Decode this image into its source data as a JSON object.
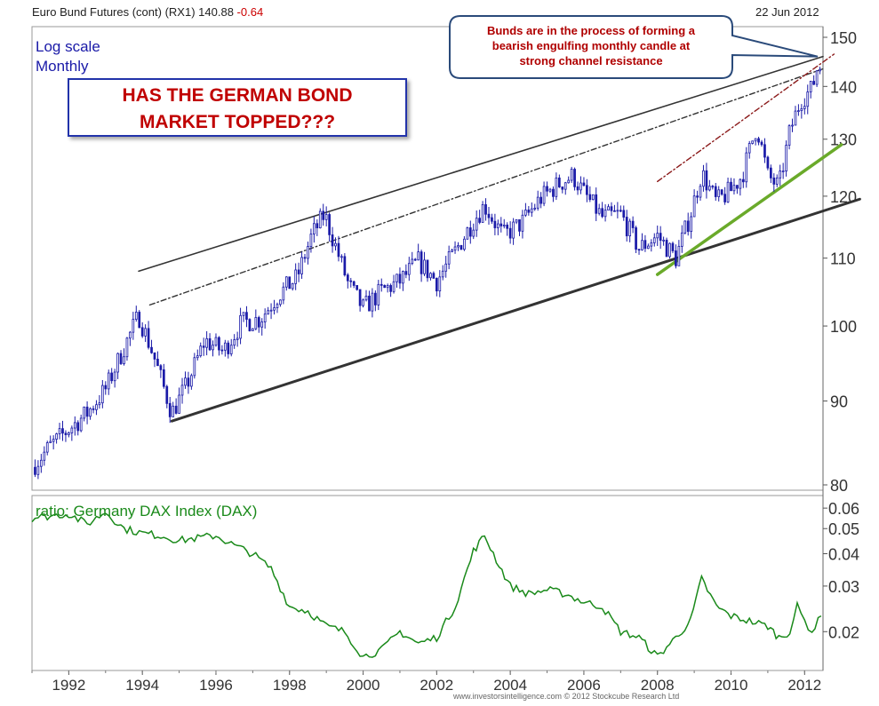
{
  "header": {
    "instrument": "Euro Bund Futures (cont) (RX1)",
    "price": "140.88",
    "change": "-0.64",
    "date": "22 Jun 2012"
  },
  "labels": {
    "scale": "Log scale",
    "period": "Monthly"
  },
  "headline": {
    "line1": "HAS THE GERMAN BOND",
    "line2": "MARKET TOPPED???"
  },
  "callout": {
    "line1": "Bunds are in the process of forming a",
    "line2": "bearish engulfing monthly candle at",
    "line3": "strong channel resistance"
  },
  "footer": "www.investorsintelligence.com  © 2012 Stockcube Research Ltd",
  "colors": {
    "candle": "#1a1aa8",
    "ratio": "#1a8a1a",
    "channel": "#333333",
    "support": "#6aaa2a",
    "trend": "#8b1a1a"
  },
  "chart_data": [
    {
      "type": "candlestick",
      "title": "Euro Bund Futures (cont) (RX1)",
      "scale": "log",
      "frequency": "Monthly",
      "xlabel": "",
      "ylabel": "",
      "ylim": [
        80,
        150
      ],
      "x_range": [
        1991.0,
        2012.5
      ],
      "x_ticks": [
        "1992",
        "1994",
        "1996",
        "1998",
        "2000",
        "2002",
        "2004",
        "2006",
        "2008",
        "2010",
        "2012"
      ],
      "y_ticks": [
        "80",
        "90",
        "100",
        "110",
        "120",
        "130",
        "140",
        "150"
      ],
      "close_path": [
        [
          1991.0,
          82.0
        ],
        [
          1991.5,
          84.5
        ],
        [
          1992.0,
          86.5
        ],
        [
          1992.5,
          88.5
        ],
        [
          1993.0,
          91.5
        ],
        [
          1993.5,
          97.0
        ],
        [
          1993.9,
          101.5
        ],
        [
          1994.3,
          96.0
        ],
        [
          1994.8,
          88.5
        ],
        [
          1995.2,
          92.0
        ],
        [
          1995.7,
          98.0
        ],
        [
          1996.2,
          96.5
        ],
        [
          1996.7,
          100.5
        ],
        [
          1997.2,
          101.0
        ],
        [
          1997.7,
          104.5
        ],
        [
          1998.2,
          107.0
        ],
        [
          1998.6,
          113.5
        ],
        [
          1998.95,
          117.0
        ],
        [
          1999.3,
          111.0
        ],
        [
          1999.6,
          106.0
        ],
        [
          2000.0,
          102.5
        ],
        [
          2000.5,
          105.0
        ],
        [
          2001.0,
          106.5
        ],
        [
          2001.5,
          109.5
        ],
        [
          2002.0,
          106.5
        ],
        [
          2002.5,
          111.0
        ],
        [
          2003.0,
          116.0
        ],
        [
          2003.3,
          118.5
        ],
        [
          2003.8,
          113.5
        ],
        [
          2004.3,
          115.5
        ],
        [
          2004.8,
          119.5
        ],
        [
          2005.3,
          122.0
        ],
        [
          2005.7,
          123.5
        ],
        [
          2006.0,
          120.5
        ],
        [
          2006.5,
          116.5
        ],
        [
          2007.0,
          117.0
        ],
        [
          2007.5,
          111.5
        ],
        [
          2008.0,
          113.5
        ],
        [
          2008.5,
          110.0
        ],
        [
          2008.9,
          117.0
        ],
        [
          2009.2,
          124.0
        ],
        [
          2009.6,
          119.0
        ],
        [
          2010.0,
          121.0
        ],
        [
          2010.3,
          123.5
        ],
        [
          2010.7,
          132.5
        ],
        [
          2011.0,
          123.5
        ],
        [
          2011.3,
          121.5
        ],
        [
          2011.6,
          131.5
        ],
        [
          2011.9,
          137.5
        ],
        [
          2012.2,
          139.5
        ],
        [
          2012.4,
          145.5
        ],
        [
          2012.45,
          140.88
        ]
      ],
      "trendlines": [
        {
          "name": "upper-channel",
          "style": "solid",
          "from": [
            1993.9,
            108.0
          ],
          "to": [
            2012.5,
            146.0
          ]
        },
        {
          "name": "lower-channel",
          "style": "solid-thick",
          "from": [
            1994.8,
            87.5
          ],
          "to": [
            2013.5,
            119.5
          ]
        },
        {
          "name": "dash-dot-trend",
          "style": "dashdot",
          "from": [
            1994.2,
            103.0
          ],
          "to": [
            2012.5,
            143.5
          ]
        },
        {
          "name": "red-trend",
          "style": "dashdot-red",
          "from": [
            2008.0,
            122.5
          ],
          "to": [
            2012.8,
            146.5
          ]
        },
        {
          "name": "green-support",
          "style": "solid-green",
          "from": [
            2008.0,
            107.5
          ],
          "to": [
            2013.0,
            129.0
          ]
        }
      ],
      "annotations": [
        "Bunds are in the process of forming a bearish engulfing monthly candle at strong channel resistance",
        "HAS THE GERMAN BOND MARKET TOPPED???"
      ]
    },
    {
      "type": "line",
      "title": "ratio: Germany DAX Index (DAX)",
      "scale": "log",
      "ylim": [
        0.0145,
        0.062
      ],
      "y_ticks": [
        "0.06",
        "0.05",
        "0.04",
        "0.03",
        "0.02"
      ],
      "x": [
        1991.0,
        1991.5,
        1992.0,
        1992.5,
        1993.0,
        1993.5,
        1994.0,
        1994.5,
        1995.0,
        1995.5,
        1996.0,
        1996.5,
        1997.0,
        1997.5,
        1998.0,
        1998.5,
        1999.0,
        1999.5,
        2000.0,
        2000.5,
        2001.0,
        2001.5,
        2002.0,
        2002.5,
        2003.0,
        2003.3,
        2003.7,
        2004.0,
        2004.5,
        2005.0,
        2005.5,
        2006.0,
        2006.5,
        2007.0,
        2007.5,
        2008.0,
        2008.5,
        2008.9,
        2009.2,
        2009.6,
        2010.0,
        2010.5,
        2011.0,
        2011.3,
        2011.6,
        2011.8,
        2012.0,
        2012.2,
        2012.45
      ],
      "series": [
        {
          "name": "ratio",
          "values": [
            0.055,
            0.056,
            0.057,
            0.052,
            0.058,
            0.05,
            0.048,
            0.047,
            0.045,
            0.046,
            0.047,
            0.043,
            0.04,
            0.035,
            0.025,
            0.024,
            0.021,
            0.02,
            0.016,
            0.017,
            0.02,
            0.018,
            0.019,
            0.025,
            0.041,
            0.047,
            0.036,
            0.03,
            0.028,
            0.029,
            0.028,
            0.026,
            0.025,
            0.02,
            0.019,
            0.016,
            0.019,
            0.022,
            0.032,
            0.025,
            0.023,
            0.022,
            0.021,
            0.019,
            0.02,
            0.025,
            0.022,
            0.02,
            0.023
          ]
        }
      ]
    }
  ]
}
